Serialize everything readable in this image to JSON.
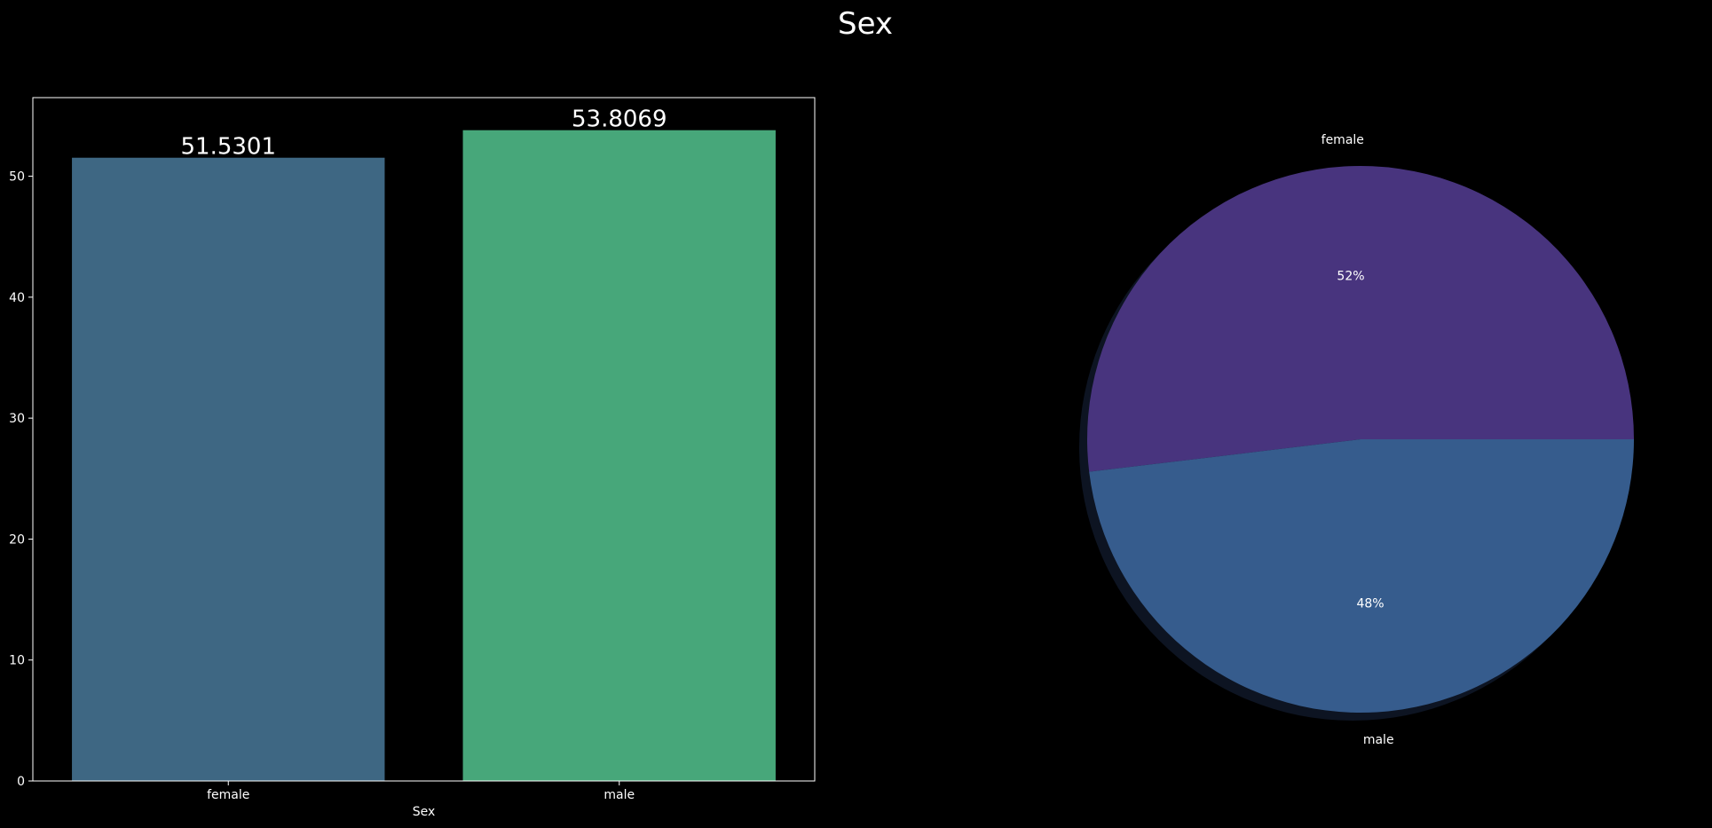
{
  "figure": {
    "title": "Sex",
    "background": "#000000",
    "text_color": "#ffffff"
  },
  "chart_data": [
    {
      "type": "bar",
      "categories": [
        "female",
        "male"
      ],
      "values": [
        51.5301,
        53.8069
      ],
      "value_labels": [
        "51.5301",
        "53.8069"
      ],
      "colors": [
        "#3e6783",
        "#47a77a"
      ],
      "xlabel": "Sex",
      "ylabel": "",
      "ylim": [
        0,
        56.5
      ],
      "yticks": [
        0,
        10,
        20,
        30,
        40,
        50
      ],
      "grid": false,
      "frame_color": "#ffffff"
    },
    {
      "type": "pie",
      "labels": [
        "female",
        "male"
      ],
      "values": [
        51.9,
        48.1
      ],
      "pct_labels": [
        "52%",
        "48%"
      ],
      "colors": [
        "#48347e",
        "#365c8d"
      ],
      "shadow": true,
      "startangle_deg": 0,
      "direction": "counterclockwise"
    }
  ]
}
